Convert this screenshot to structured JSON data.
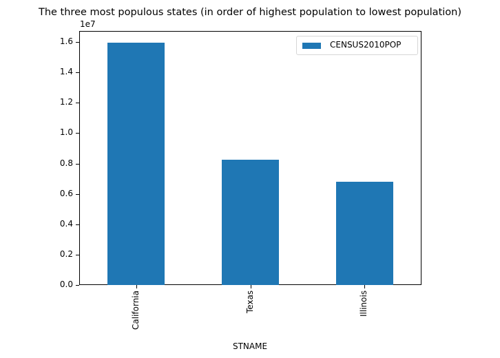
{
  "chart_data": {
    "type": "bar",
    "title": "The three most populous states (in order of highest population to lowest population)",
    "xlabel": "STNAME",
    "ylabel": "",
    "y_offset_label": "1e7",
    "categories": [
      "California",
      "Texas",
      "Illinois"
    ],
    "series": [
      {
        "name": "CENSUS2010POP",
        "color": "#1f77b4",
        "values": [
          15960000,
          8250000,
          6800000
        ]
      }
    ],
    "ylim": [
      0,
      16700000
    ],
    "yticks": [
      "0.0",
      "0.2",
      "0.4",
      "0.6",
      "0.8",
      "1.0",
      "1.2",
      "1.4",
      "1.6"
    ],
    "grid": false,
    "legend_position": "upper right"
  }
}
